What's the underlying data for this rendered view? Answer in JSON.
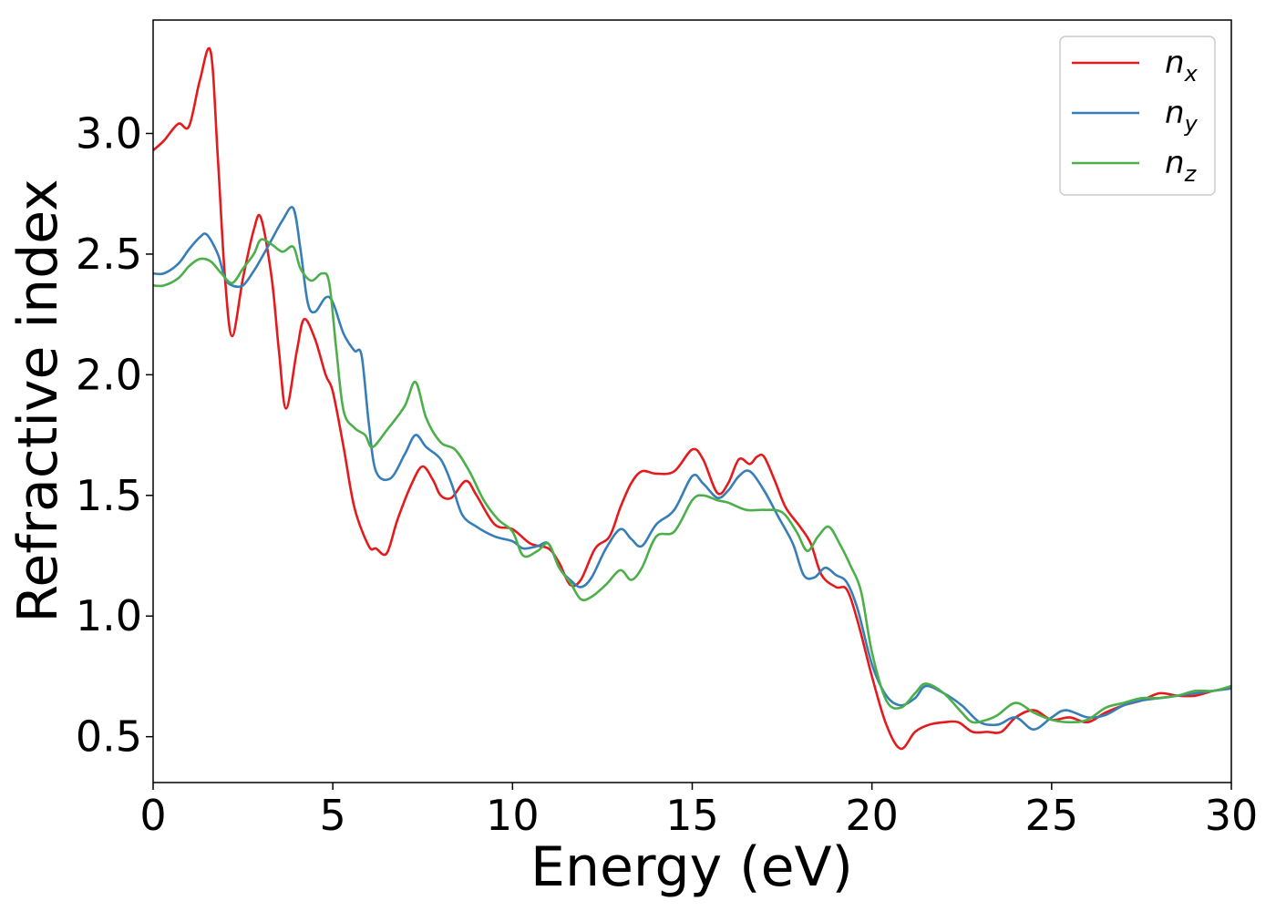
{
  "chart_data": {
    "type": "line",
    "xlabel": "Energy (eV)",
    "ylabel": "Refractive index",
    "xlim": [
      0,
      30
    ],
    "ylim": [
      0.31,
      3.47
    ],
    "xticks": [
      0,
      5,
      10,
      15,
      20,
      25,
      30
    ],
    "xtick_labels": [
      "0",
      "5",
      "10",
      "15",
      "20",
      "25",
      "30"
    ],
    "yticks": [
      0.5,
      1.0,
      1.5,
      2.0,
      2.5,
      3.0
    ],
    "ytick_labels": [
      "0.5",
      "1.0",
      "1.5",
      "2.0",
      "2.5",
      "3.0"
    ],
    "grid": false,
    "legend_position": "top-right",
    "series": [
      {
        "name": "n",
        "subscript": "x",
        "color": "#e41a1c",
        "x": [
          0,
          0.3,
          0.7,
          1.0,
          1.3,
          1.6,
          1.8,
          2.0,
          2.2,
          2.5,
          2.8,
          3.0,
          3.3,
          3.5,
          3.7,
          4.0,
          4.2,
          4.5,
          4.8,
          5.0,
          5.3,
          5.6,
          6.0,
          6.2,
          6.5,
          6.8,
          7.2,
          7.5,
          7.8,
          8.0,
          8.3,
          8.7,
          9.0,
          9.5,
          10.0,
          10.5,
          11.0,
          11.3,
          11.6,
          11.9,
          12.3,
          12.7,
          13.0,
          13.3,
          13.6,
          14.0,
          14.5,
          15.0,
          15.3,
          15.7,
          16.0,
          16.3,
          16.6,
          16.8,
          17.0,
          17.3,
          17.6,
          18.0,
          18.3,
          18.6,
          19.0,
          19.3,
          19.6,
          20.0,
          20.4,
          20.8,
          21.2,
          21.6,
          22.0,
          22.4,
          22.8,
          23.2,
          23.6,
          24.0,
          24.5,
          25.0,
          25.5,
          26.0,
          26.5,
          27.0,
          27.5,
          28.0,
          28.5,
          29.0,
          29.5,
          30.0
        ],
        "values": [
          2.93,
          2.97,
          3.04,
          3.03,
          3.22,
          3.34,
          2.9,
          2.4,
          2.16,
          2.4,
          2.6,
          2.65,
          2.4,
          2.1,
          1.86,
          2.1,
          2.23,
          2.15,
          2.0,
          1.93,
          1.7,
          1.45,
          1.29,
          1.28,
          1.26,
          1.4,
          1.55,
          1.62,
          1.56,
          1.5,
          1.49,
          1.56,
          1.5,
          1.38,
          1.36,
          1.3,
          1.28,
          1.22,
          1.13,
          1.15,
          1.28,
          1.33,
          1.45,
          1.55,
          1.6,
          1.59,
          1.6,
          1.69,
          1.65,
          1.51,
          1.55,
          1.65,
          1.63,
          1.66,
          1.66,
          1.56,
          1.45,
          1.37,
          1.3,
          1.17,
          1.12,
          1.11,
          0.98,
          0.75,
          0.55,
          0.45,
          0.52,
          0.55,
          0.56,
          0.56,
          0.52,
          0.52,
          0.52,
          0.58,
          0.61,
          0.57,
          0.58,
          0.56,
          0.6,
          0.63,
          0.65,
          0.68,
          0.67,
          0.67,
          0.69,
          0.7
        ]
      },
      {
        "name": "n",
        "subscript": "y",
        "color": "#377eb8",
        "x": [
          0,
          0.3,
          0.7,
          1.0,
          1.3,
          1.5,
          1.8,
          2.0,
          2.2,
          2.5,
          2.8,
          3.0,
          3.3,
          3.6,
          3.9,
          4.1,
          4.3,
          4.5,
          4.8,
          5.0,
          5.3,
          5.6,
          5.8,
          6.0,
          6.2,
          6.6,
          7.0,
          7.3,
          7.6,
          8.0,
          8.3,
          8.6,
          9.0,
          9.5,
          10.0,
          10.3,
          10.7,
          11.0,
          11.3,
          11.6,
          11.9,
          12.2,
          12.6,
          13.0,
          13.3,
          13.6,
          14.0,
          14.5,
          15.0,
          15.3,
          15.7,
          16.0,
          16.3,
          16.6,
          17.0,
          17.4,
          17.8,
          18.1,
          18.4,
          18.7,
          19.0,
          19.3,
          19.6,
          20.0,
          20.4,
          20.8,
          21.2,
          21.5,
          22.0,
          22.5,
          23.0,
          23.5,
          24.0,
          24.5,
          25.0,
          25.4,
          26.0,
          26.5,
          27.0,
          27.5,
          28.0,
          28.5,
          29.0,
          29.5,
          30.0
        ],
        "values": [
          2.42,
          2.42,
          2.46,
          2.52,
          2.57,
          2.58,
          2.5,
          2.4,
          2.37,
          2.37,
          2.43,
          2.48,
          2.56,
          2.64,
          2.69,
          2.52,
          2.3,
          2.26,
          2.32,
          2.3,
          2.17,
          2.1,
          2.08,
          1.8,
          1.6,
          1.57,
          1.67,
          1.75,
          1.7,
          1.65,
          1.55,
          1.42,
          1.37,
          1.33,
          1.31,
          1.28,
          1.29,
          1.3,
          1.2,
          1.15,
          1.12,
          1.16,
          1.28,
          1.36,
          1.32,
          1.29,
          1.38,
          1.44,
          1.58,
          1.55,
          1.49,
          1.52,
          1.58,
          1.6,
          1.52,
          1.41,
          1.3,
          1.17,
          1.16,
          1.2,
          1.17,
          1.14,
          1.03,
          0.8,
          0.67,
          0.63,
          0.66,
          0.71,
          0.68,
          0.63,
          0.56,
          0.55,
          0.58,
          0.53,
          0.58,
          0.61,
          0.58,
          0.59,
          0.63,
          0.65,
          0.66,
          0.67,
          0.68,
          0.69,
          0.7
        ]
      },
      {
        "name": "n",
        "subscript": "z",
        "color": "#4daf4a",
        "x": [
          0,
          0.3,
          0.7,
          1.0,
          1.3,
          1.6,
          1.9,
          2.2,
          2.5,
          2.8,
          3.0,
          3.3,
          3.6,
          3.9,
          4.1,
          4.4,
          4.7,
          4.9,
          5.1,
          5.3,
          5.6,
          5.9,
          6.1,
          6.5,
          7.0,
          7.3,
          7.6,
          8.0,
          8.4,
          8.8,
          9.2,
          9.6,
          10.0,
          10.3,
          10.7,
          11.0,
          11.3,
          11.6,
          11.9,
          12.2,
          12.6,
          13.0,
          13.3,
          13.6,
          14.0,
          14.5,
          15.0,
          15.3,
          15.7,
          16.0,
          16.5,
          17.0,
          17.5,
          17.9,
          18.2,
          18.5,
          18.8,
          19.1,
          19.4,
          19.7,
          20.0,
          20.4,
          20.8,
          21.2,
          21.5,
          22.0,
          22.5,
          22.8,
          23.2,
          23.5,
          24.0,
          24.5,
          25.0,
          25.5,
          26.0,
          26.5,
          27.0,
          27.5,
          28.0,
          28.5,
          29.0,
          29.5,
          30.0
        ],
        "values": [
          2.37,
          2.37,
          2.4,
          2.45,
          2.48,
          2.47,
          2.42,
          2.38,
          2.44,
          2.5,
          2.56,
          2.54,
          2.51,
          2.53,
          2.44,
          2.39,
          2.42,
          2.38,
          2.1,
          1.85,
          1.78,
          1.75,
          1.7,
          1.77,
          1.87,
          1.97,
          1.82,
          1.72,
          1.69,
          1.6,
          1.48,
          1.4,
          1.35,
          1.25,
          1.27,
          1.3,
          1.2,
          1.14,
          1.07,
          1.08,
          1.13,
          1.19,
          1.15,
          1.2,
          1.33,
          1.35,
          1.48,
          1.5,
          1.48,
          1.47,
          1.44,
          1.44,
          1.43,
          1.35,
          1.27,
          1.33,
          1.37,
          1.3,
          1.21,
          1.1,
          0.85,
          0.65,
          0.62,
          0.68,
          0.72,
          0.68,
          0.6,
          0.56,
          0.57,
          0.59,
          0.64,
          0.6,
          0.57,
          0.56,
          0.57,
          0.62,
          0.64,
          0.66,
          0.66,
          0.67,
          0.69,
          0.69,
          0.71
        ]
      }
    ]
  }
}
